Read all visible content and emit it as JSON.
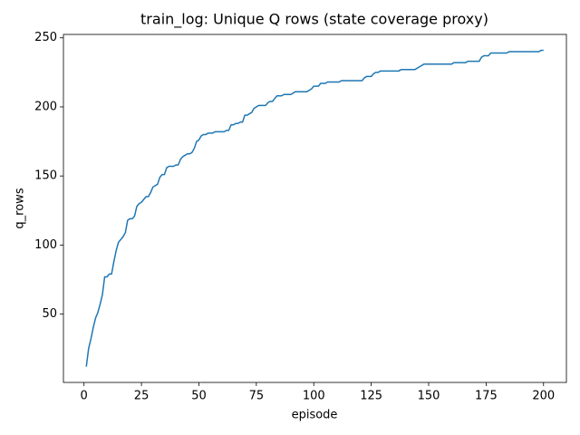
{
  "chart_data": {
    "type": "line",
    "title": "train_log: Unique Q rows (state coverage proxy)",
    "x_label": "episode",
    "y_label": "q_rows",
    "color": "#1f77b4",
    "x": [
      1,
      2,
      3,
      4,
      5,
      6,
      7,
      8,
      9,
      10,
      11,
      12,
      13,
      14,
      15,
      16,
      17,
      18,
      19,
      20,
      21,
      22,
      23,
      24,
      25,
      26,
      27,
      28,
      29,
      30,
      31,
      32,
      33,
      34,
      35,
      36,
      37,
      38,
      39,
      40,
      41,
      42,
      43,
      44,
      45,
      46,
      47,
      48,
      49,
      50,
      51,
      52,
      53,
      54,
      55,
      56,
      57,
      58,
      59,
      60,
      61,
      62,
      63,
      64,
      65,
      66,
      67,
      68,
      69,
      70,
      71,
      72,
      73,
      74,
      75,
      76,
      77,
      78,
      79,
      80,
      81,
      82,
      83,
      84,
      85,
      86,
      87,
      88,
      89,
      90,
      91,
      92,
      93,
      94,
      95,
      96,
      97,
      98,
      99,
      100,
      101,
      102,
      103,
      104,
      105,
      106,
      107,
      108,
      109,
      110,
      111,
      112,
      113,
      114,
      115,
      116,
      117,
      118,
      119,
      120,
      121,
      122,
      123,
      124,
      125,
      126,
      127,
      128,
      129,
      130,
      131,
      132,
      133,
      134,
      135,
      136,
      137,
      138,
      139,
      140,
      141,
      142,
      143,
      144,
      145,
      146,
      147,
      148,
      149,
      150,
      151,
      152,
      153,
      154,
      155,
      156,
      157,
      158,
      159,
      160,
      161,
      162,
      163,
      164,
      165,
      166,
      167,
      168,
      169,
      170,
      171,
      172,
      173,
      174,
      175,
      176,
      177,
      178,
      179,
      180,
      181,
      182,
      183,
      184,
      185,
      186,
      187,
      188,
      189,
      190,
      191,
      192,
      193,
      194,
      195,
      196,
      197,
      198,
      199,
      200
    ],
    "values": [
      12,
      25,
      32,
      40,
      47,
      51,
      57,
      64,
      77,
      77,
      79,
      79,
      88,
      96,
      102,
      104,
      106,
      109,
      118,
      119,
      119,
      121,
      128,
      130,
      131,
      133,
      135,
      135,
      138,
      142,
      143,
      144,
      149,
      151,
      151,
      156,
      157,
      157,
      157,
      158,
      158,
      162,
      164,
      165,
      166,
      166,
      167,
      170,
      175,
      176,
      179,
      180,
      180,
      181,
      181,
      181,
      182,
      182,
      182,
      182,
      182,
      183,
      183,
      187,
      187,
      188,
      188,
      189,
      189,
      194,
      194,
      195,
      196,
      199,
      200,
      201,
      201,
      201,
      201,
      203,
      204,
      204,
      206,
      208,
      208,
      208,
      209,
      209,
      209,
      209,
      210,
      211,
      211,
      211,
      211,
      211,
      211,
      212,
      213,
      215,
      215,
      215,
      217,
      217,
      217,
      218,
      218,
      218,
      218,
      218,
      218,
      219,
      219,
      219,
      219,
      219,
      219,
      219,
      219,
      219,
      219,
      221,
      222,
      222,
      222,
      224,
      225,
      225,
      226,
      226,
      226,
      226,
      226,
      226,
      226,
      226,
      226,
      227,
      227,
      227,
      227,
      227,
      227,
      227,
      228,
      229,
      230,
      231,
      231,
      231,
      231,
      231,
      231,
      231,
      231,
      231,
      231,
      231,
      231,
      231,
      232,
      232,
      232,
      232,
      232,
      232,
      233,
      233,
      233,
      233,
      233,
      233,
      236,
      237,
      237,
      237,
      239,
      239,
      239,
      239,
      239,
      239,
      239,
      239,
      240,
      240,
      240,
      240,
      240,
      240,
      240,
      240,
      240,
      240,
      240,
      240,
      240,
      240,
      241,
      241
    ],
    "xlim": [
      -8.95,
      209.95
    ],
    "xticks": [
      0,
      25,
      50,
      75,
      100,
      125,
      150,
      175,
      200
    ],
    "ylim": [
      0.55,
      252.45
    ],
    "yticks": [
      50,
      100,
      150,
      200,
      250
    ]
  }
}
